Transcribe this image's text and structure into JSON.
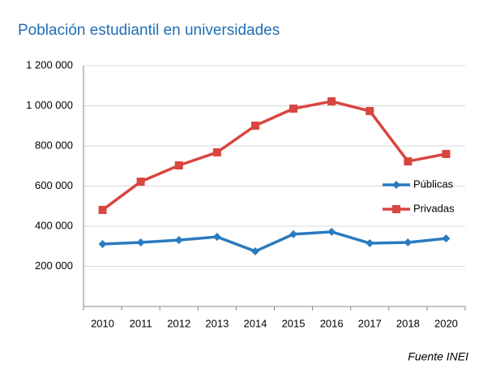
{
  "chart_data": {
    "type": "line",
    "title": "Población estudiantil en universidades",
    "source": "Fuente INEI",
    "categories": [
      "2010",
      "2011",
      "2012",
      "2013",
      "2014",
      "2015",
      "2016",
      "2017",
      "2018",
      "2020"
    ],
    "series": [
      {
        "name": "Públicas",
        "color": "#2a7bbf",
        "marker": "diamond",
        "values": [
          311000,
          319000,
          331000,
          347000,
          275000,
          360000,
          372000,
          315000,
          319000,
          339000
        ]
      },
      {
        "name": "Privadas",
        "color": "#d9453f",
        "marker": "square",
        "values": [
          481000,
          622000,
          703000,
          768000,
          901000,
          986000,
          1022000,
          974000,
          723000,
          760000
        ]
      }
    ],
    "ylim": [
      0,
      1200000
    ],
    "yticks": [
      {
        "value": 200000,
        "label": "200 000"
      },
      {
        "value": 400000,
        "label": "400 000"
      },
      {
        "value": 600000,
        "label": "600 000"
      },
      {
        "value": 800000,
        "label": "800 000"
      },
      {
        "value": 1000000,
        "label": "1 000 000"
      },
      {
        "value": 1200000,
        "label": "1 200 000"
      }
    ],
    "grid": true,
    "legend": "right"
  }
}
